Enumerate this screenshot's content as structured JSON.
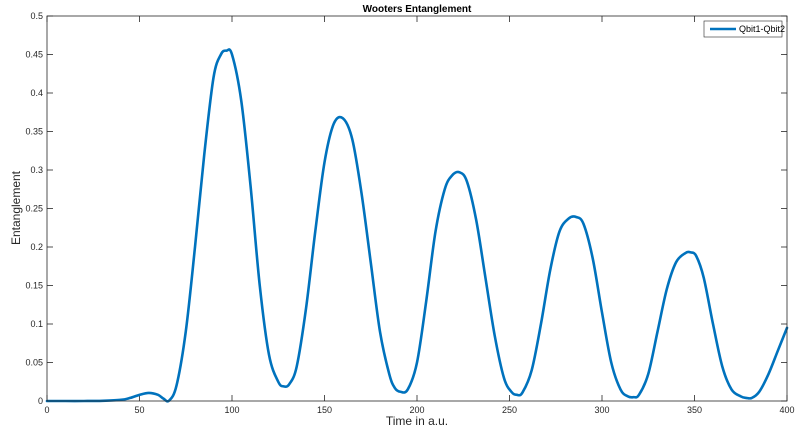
{
  "chart_data": {
    "type": "line",
    "title": "Wooters Entanglement",
    "xlabel": "Time in a.u.",
    "ylabel": "Entanglement",
    "xlim": [
      0,
      400
    ],
    "ylim": [
      0,
      0.5
    ],
    "xticks": [
      0,
      50,
      100,
      150,
      200,
      250,
      300,
      350,
      400
    ],
    "yticks": [
      0,
      0.05,
      0.1,
      0.15,
      0.2,
      0.25,
      0.3,
      0.35,
      0.4,
      0.45,
      0.5
    ],
    "xtick_labels": [
      "0",
      "50",
      "100",
      "150",
      "200",
      "250",
      "300",
      "350",
      "400"
    ],
    "ytick_labels": [
      "0",
      "0.05",
      "0.1",
      "0.15",
      "0.2",
      "0.25",
      "0.3",
      "0.35",
      "0.4",
      "0.45",
      "0.5"
    ],
    "grid": false,
    "legend_position": "top-right",
    "series": [
      {
        "name": "Qbit1-Qbit2",
        "color": "#0072BD",
        "x": [
          0,
          10,
          20,
          30,
          40,
          45,
          50,
          55,
          60,
          63,
          66,
          70,
          75,
          80,
          85,
          90,
          94,
          97,
          100,
          105,
          110,
          115,
          120,
          125,
          128,
          131,
          135,
          140,
          145,
          150,
          155,
          160,
          165,
          170,
          175,
          180,
          185,
          188,
          191,
          195,
          200,
          205,
          210,
          215,
          219,
          223,
          227,
          232,
          237,
          242,
          247,
          251,
          254,
          257,
          262,
          267,
          272,
          277,
          282,
          286,
          290,
          295,
          300,
          305,
          310,
          314,
          317,
          320,
          325,
          330,
          335,
          340,
          345,
          348,
          351,
          355,
          360,
          365,
          370,
          375,
          378,
          381,
          385,
          390,
          395,
          400
        ],
        "y": [
          0,
          0,
          0,
          0.0003,
          0.0015,
          0.004,
          0.008,
          0.0105,
          0.008,
          0.003,
          0.0005,
          0.02,
          0.09,
          0.2,
          0.32,
          0.42,
          0.45,
          0.455,
          0.45,
          0.39,
          0.28,
          0.15,
          0.06,
          0.025,
          0.019,
          0.022,
          0.045,
          0.12,
          0.22,
          0.31,
          0.36,
          0.367,
          0.34,
          0.27,
          0.18,
          0.09,
          0.035,
          0.017,
          0.012,
          0.015,
          0.05,
          0.13,
          0.22,
          0.275,
          0.293,
          0.297,
          0.285,
          0.235,
          0.16,
          0.085,
          0.03,
          0.012,
          0.008,
          0.011,
          0.04,
          0.1,
          0.17,
          0.22,
          0.237,
          0.239,
          0.23,
          0.185,
          0.115,
          0.05,
          0.015,
          0.006,
          0.005,
          0.008,
          0.035,
          0.09,
          0.145,
          0.18,
          0.192,
          0.193,
          0.188,
          0.16,
          0.1,
          0.045,
          0.015,
          0.006,
          0.004,
          0.004,
          0.012,
          0.035,
          0.065,
          0.095
        ]
      }
    ]
  }
}
